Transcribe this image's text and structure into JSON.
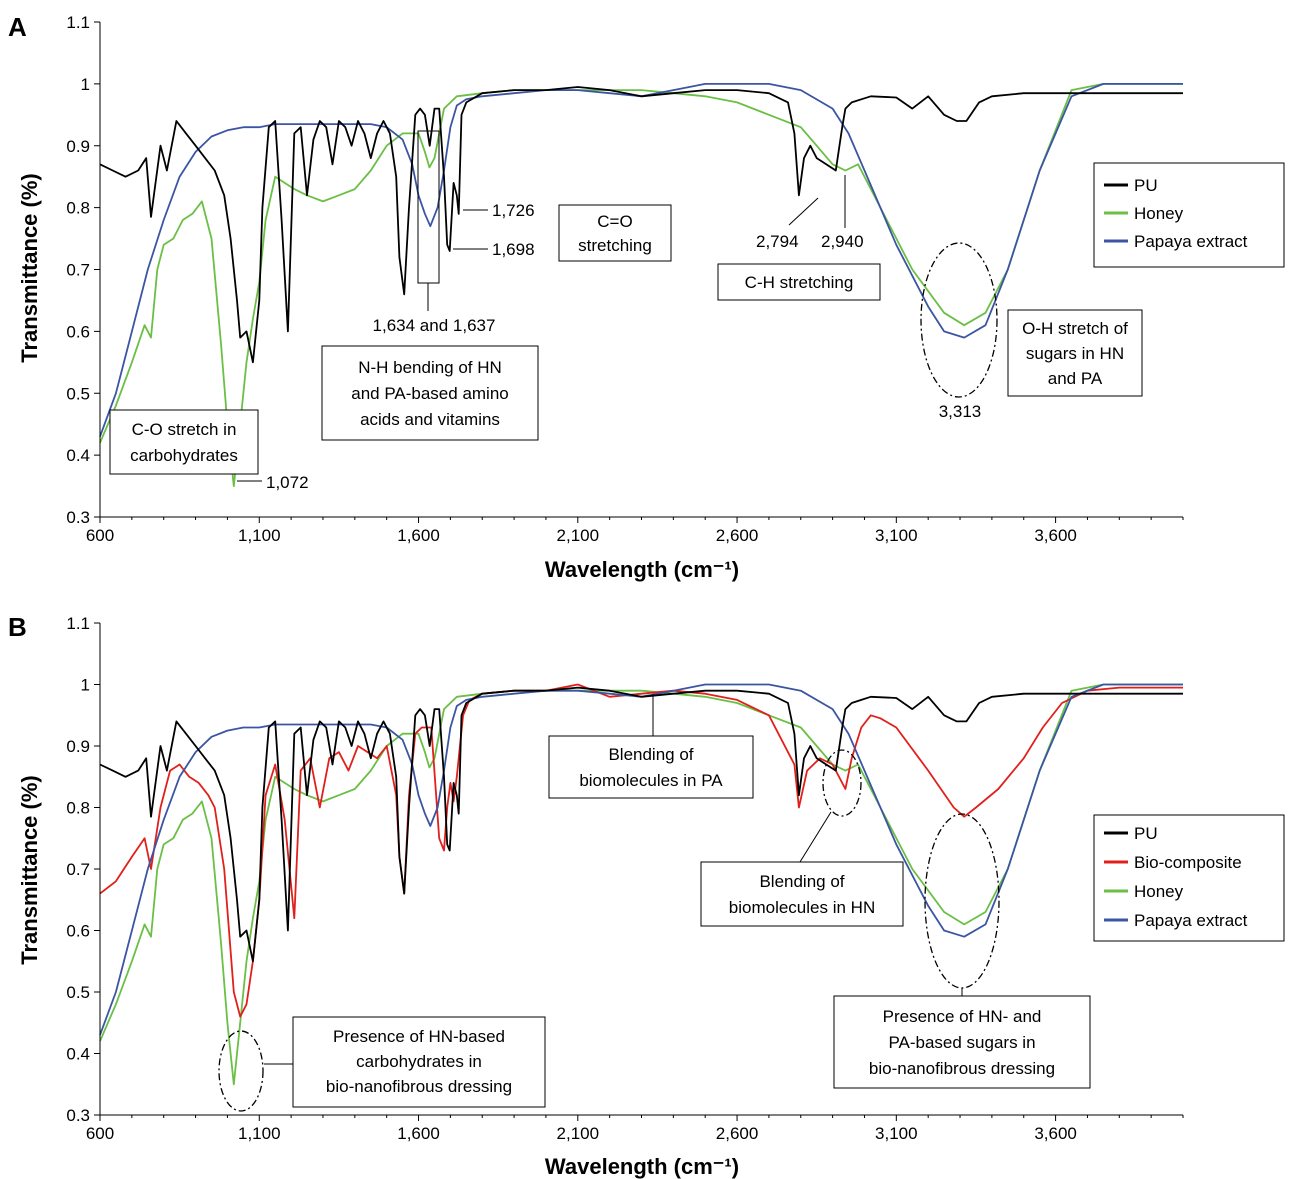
{
  "chart_data": [
    {
      "panel": "A",
      "type": "line",
      "xlabel": "Wavelength (cm⁻¹)",
      "ylabel": "Transmittance (%)",
      "xlim": [
        600,
        4000
      ],
      "ylim": [
        0.3,
        1.1
      ],
      "xticks": [
        "600",
        "1,100",
        "1,600",
        "2,100",
        "2,600",
        "3,100",
        "3,600"
      ],
      "yticks": [
        "0.3",
        "0.4",
        "0.5",
        "0.6",
        "0.7",
        "0.8",
        "0.9",
        "1",
        "1.1"
      ],
      "legend_position": "right",
      "series": [
        {
          "name": "PU",
          "color": "#000000",
          "x": [
            600,
            640,
            680,
            720,
            745,
            760,
            790,
            810,
            840,
            870,
            900,
            930,
            960,
            990,
            1010,
            1030,
            1040,
            1060,
            1080,
            1090,
            1100,
            1110,
            1130,
            1150,
            1170,
            1190,
            1210,
            1230,
            1250,
            1270,
            1290,
            1310,
            1330,
            1350,
            1370,
            1390,
            1410,
            1430,
            1450,
            1470,
            1490,
            1510,
            1530,
            1540,
            1555,
            1570,
            1590,
            1605,
            1620,
            1635,
            1650,
            1665,
            1680,
            1690,
            1698,
            1710,
            1720,
            1726,
            1735,
            1750,
            1800,
            1900,
            2000,
            2100,
            2200,
            2300,
            2400,
            2500,
            2600,
            2700,
            2760,
            2780,
            2794,
            2810,
            2830,
            2850,
            2880,
            2910,
            2930,
            2940,
            2960,
            2990,
            3020,
            3100,
            3150,
            3200,
            3250,
            3290,
            3320,
            3360,
            3400,
            3500,
            3600,
            3700,
            3800,
            3900,
            4000
          ],
          "y": [
            0.87,
            0.86,
            0.85,
            0.86,
            0.88,
            0.785,
            0.9,
            0.86,
            0.94,
            0.92,
            0.9,
            0.88,
            0.86,
            0.82,
            0.75,
            0.65,
            0.59,
            0.6,
            0.55,
            0.6,
            0.65,
            0.8,
            0.93,
            0.94,
            0.78,
            0.6,
            0.92,
            0.93,
            0.82,
            0.91,
            0.94,
            0.93,
            0.87,
            0.94,
            0.93,
            0.9,
            0.94,
            0.92,
            0.88,
            0.92,
            0.94,
            0.92,
            0.85,
            0.72,
            0.66,
            0.8,
            0.95,
            0.96,
            0.95,
            0.9,
            0.96,
            0.96,
            0.85,
            0.74,
            0.73,
            0.84,
            0.82,
            0.79,
            0.95,
            0.97,
            0.985,
            0.99,
            0.99,
            0.995,
            0.99,
            0.98,
            0.985,
            0.99,
            0.99,
            0.985,
            0.97,
            0.92,
            0.82,
            0.88,
            0.9,
            0.88,
            0.87,
            0.86,
            0.93,
            0.96,
            0.97,
            0.975,
            0.98,
            0.978,
            0.96,
            0.98,
            0.95,
            0.94,
            0.94,
            0.97,
            0.98,
            0.985,
            0.985,
            0.985,
            0.985,
            0.985,
            0.985
          ]
        },
        {
          "name": "Honey",
          "color": "#6abf45",
          "x": [
            600,
            650,
            700,
            740,
            760,
            780,
            800,
            830,
            860,
            890,
            920,
            950,
            980,
            1000,
            1020,
            1040,
            1060,
            1080,
            1100,
            1120,
            1150,
            1180,
            1210,
            1250,
            1300,
            1350,
            1400,
            1450,
            1500,
            1550,
            1600,
            1620,
            1634,
            1650,
            1680,
            1720,
            1800,
            1900,
            2000,
            2100,
            2200,
            2300,
            2400,
            2500,
            2600,
            2700,
            2800,
            2900,
            2940,
            2980,
            3050,
            3150,
            3250,
            3313,
            3380,
            3450,
            3550,
            3650,
            3750,
            3850,
            4000
          ],
          "y": [
            0.42,
            0.48,
            0.55,
            0.61,
            0.59,
            0.7,
            0.74,
            0.75,
            0.78,
            0.79,
            0.81,
            0.75,
            0.58,
            0.45,
            0.35,
            0.45,
            0.55,
            0.62,
            0.68,
            0.78,
            0.85,
            0.84,
            0.83,
            0.82,
            0.81,
            0.82,
            0.83,
            0.86,
            0.9,
            0.92,
            0.92,
            0.89,
            0.865,
            0.88,
            0.96,
            0.98,
            0.985,
            0.99,
            0.99,
            0.99,
            0.99,
            0.99,
            0.985,
            0.98,
            0.97,
            0.95,
            0.93,
            0.87,
            0.86,
            0.87,
            0.8,
            0.7,
            0.63,
            0.61,
            0.63,
            0.7,
            0.86,
            0.99,
            1.0,
            1.0,
            1.0
          ]
        },
        {
          "name": "Papaya extract",
          "color": "#3b55a3",
          "x": [
            600,
            650,
            700,
            750,
            800,
            850,
            900,
            950,
            1000,
            1050,
            1100,
            1150,
            1200,
            1300,
            1400,
            1450,
            1500,
            1550,
            1580,
            1600,
            1620,
            1637,
            1660,
            1680,
            1700,
            1720,
            1750,
            1800,
            1900,
            2000,
            2100,
            2200,
            2300,
            2400,
            2500,
            2600,
            2700,
            2800,
            2900,
            2950,
            3000,
            3100,
            3200,
            3250,
            3313,
            3380,
            3450,
            3550,
            3650,
            3750,
            3850,
            4000
          ],
          "y": [
            0.43,
            0.5,
            0.6,
            0.7,
            0.78,
            0.85,
            0.89,
            0.915,
            0.925,
            0.93,
            0.93,
            0.935,
            0.935,
            0.935,
            0.935,
            0.935,
            0.93,
            0.91,
            0.87,
            0.82,
            0.79,
            0.77,
            0.8,
            0.86,
            0.93,
            0.965,
            0.975,
            0.98,
            0.985,
            0.99,
            0.99,
            0.985,
            0.98,
            0.99,
            1.0,
            1.0,
            1.0,
            0.99,
            0.96,
            0.92,
            0.86,
            0.74,
            0.64,
            0.6,
            0.59,
            0.61,
            0.7,
            0.86,
            0.98,
            1.0,
            1.0,
            1.0
          ]
        }
      ]
    },
    {
      "panel": "B",
      "type": "line",
      "xlabel": "Wavelength (cm⁻¹)",
      "ylabel": "Transmittance (%)",
      "xlim": [
        600,
        4000
      ],
      "ylim": [
        0.3,
        1.1
      ],
      "xticks": [
        "600",
        "1,100",
        "1,600",
        "2,100",
        "2,600",
        "3,100",
        "3,600"
      ],
      "yticks": [
        "0.3",
        "0.4",
        "0.5",
        "0.6",
        "0.7",
        "0.8",
        "0.9",
        "1",
        "1.1"
      ],
      "legend_position": "right",
      "series": [
        {
          "name": "PU",
          "color": "#000000",
          "same_as": "A.PU"
        },
        {
          "name": "Bio-composite",
          "color": "#e0201b",
          "x": [
            600,
            650,
            700,
            740,
            760,
            790,
            820,
            850,
            880,
            910,
            940,
            960,
            990,
            1020,
            1040,
            1060,
            1080,
            1100,
            1120,
            1150,
            1180,
            1210,
            1230,
            1260,
            1290,
            1320,
            1350,
            1380,
            1410,
            1440,
            1470,
            1500,
            1530,
            1540,
            1555,
            1570,
            1590,
            1610,
            1640,
            1665,
            1680,
            1690,
            1700,
            1710,
            1720,
            1740,
            1760,
            1800,
            1900,
            2000,
            2100,
            2200,
            2300,
            2400,
            2500,
            2600,
            2700,
            2780,
            2794,
            2820,
            2860,
            2900,
            2940,
            2960,
            2990,
            3020,
            3050,
            3100,
            3200,
            3280,
            3313,
            3350,
            3420,
            3500,
            3560,
            3620,
            3700,
            3800,
            4000
          ],
          "y": [
            0.66,
            0.68,
            0.72,
            0.75,
            0.7,
            0.8,
            0.86,
            0.87,
            0.85,
            0.84,
            0.82,
            0.8,
            0.7,
            0.5,
            0.46,
            0.48,
            0.55,
            0.65,
            0.82,
            0.87,
            0.78,
            0.62,
            0.86,
            0.88,
            0.8,
            0.88,
            0.89,
            0.86,
            0.9,
            0.89,
            0.88,
            0.9,
            0.82,
            0.72,
            0.66,
            0.82,
            0.92,
            0.93,
            0.93,
            0.75,
            0.73,
            0.8,
            0.84,
            0.81,
            0.85,
            0.95,
            0.975,
            0.985,
            0.99,
            0.99,
            1.0,
            0.98,
            0.985,
            0.99,
            0.985,
            0.975,
            0.95,
            0.87,
            0.8,
            0.86,
            0.88,
            0.87,
            0.83,
            0.88,
            0.93,
            0.95,
            0.945,
            0.93,
            0.86,
            0.8,
            0.785,
            0.8,
            0.83,
            0.88,
            0.93,
            0.97,
            0.99,
            0.995,
            0.995
          ]
        },
        {
          "name": "Honey",
          "color": "#6abf45",
          "same_as": "A.Honey"
        },
        {
          "name": "Papaya extract",
          "color": "#3b55a3",
          "same_as": "A.Papaya extract"
        }
      ]
    }
  ],
  "panelA": {
    "label": "A",
    "legend": [
      "PU",
      "Honey",
      "Papaya extract"
    ],
    "annotations": {
      "co_stretch": [
        "C-O stretch in",
        "carbohydrates"
      ],
      "v1072": "1,072",
      "v1634": "1,634 and 1,637",
      "nh_bending": [
        "N-H bending of HN",
        "and PA-based amino",
        "acids and vitamins"
      ],
      "v1726": "1,726",
      "v1698": "1,698",
      "co_double": [
        "C=O",
        "stretching"
      ],
      "v2794": "2,794",
      "v2940": "2,940",
      "ch_stretch": "C-H stretching",
      "oh_stretch": [
        "O-H stretch of",
        "sugars in HN",
        "and PA"
      ],
      "v3313": "3,313"
    }
  },
  "panelB": {
    "label": "B",
    "legend": [
      "PU",
      "Bio-composite",
      "Honey",
      "Papaya extract"
    ],
    "annotations": {
      "blend_pa": [
        "Blending of",
        "biomolecules in PA"
      ],
      "blend_hn": [
        "Blending of",
        "biomolecules in HN"
      ],
      "hn_carbs": [
        "Presence of HN-based",
        "carbohydrates in",
        "bio-nanofibrous dressing"
      ],
      "hn_pa_sugars": [
        "Presence of HN- and",
        "PA-based sugars in",
        "bio-nanofibrous dressing"
      ]
    }
  }
}
